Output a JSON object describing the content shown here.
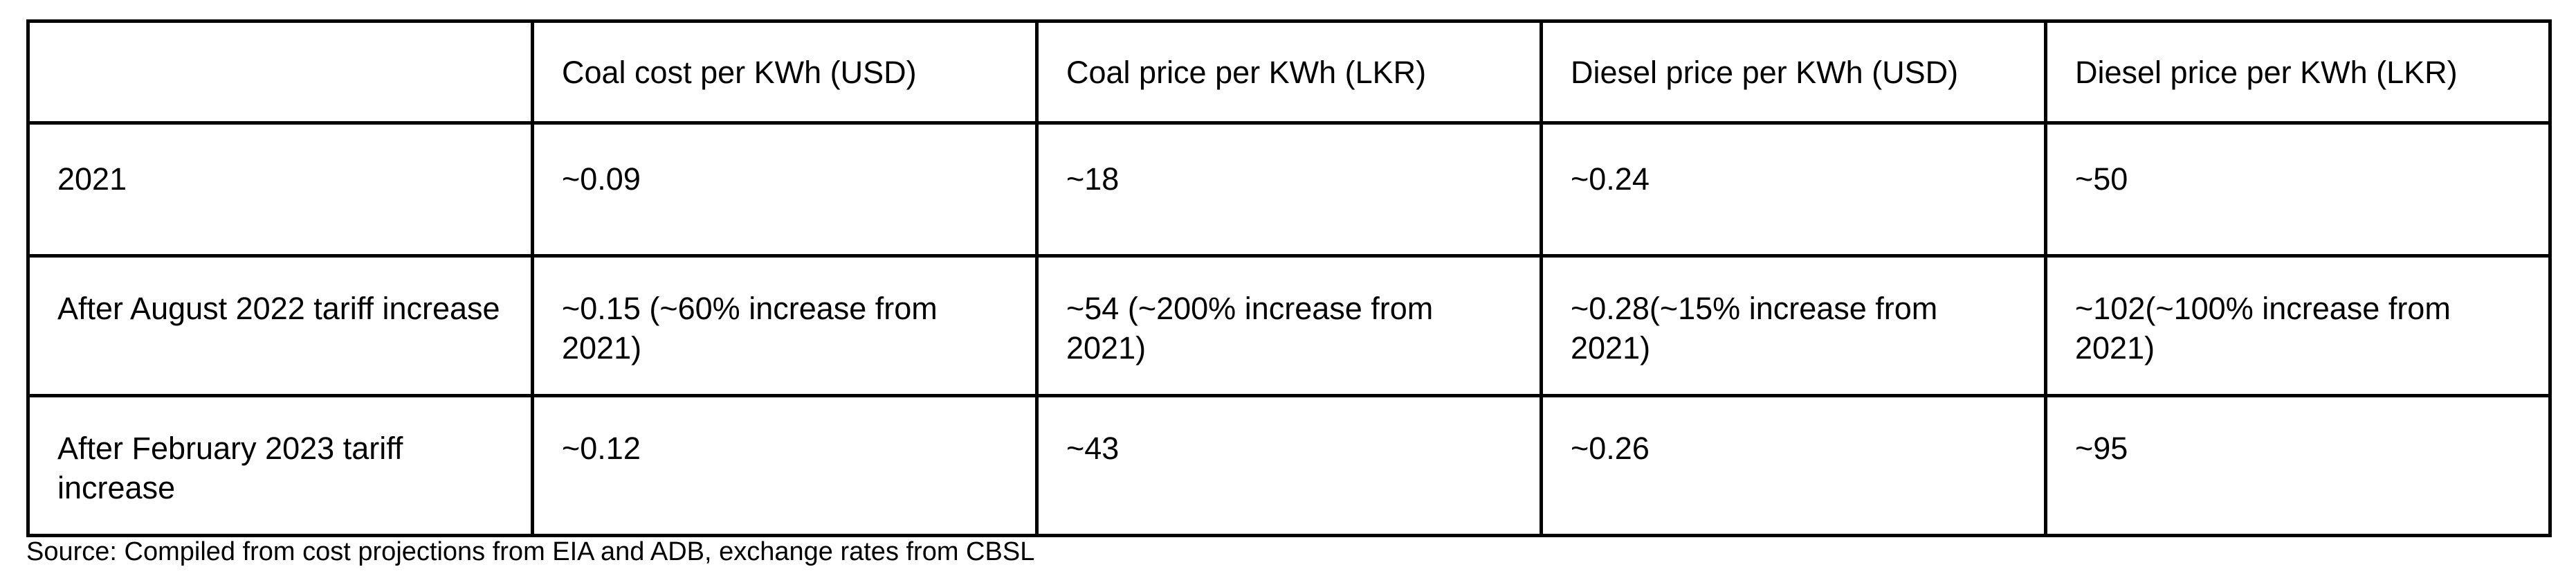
{
  "table": {
    "headers": [
      "",
      "Coal cost per KWh (USD)",
      "Coal price per KWh (LKR)",
      "Diesel price per KWh (USD)",
      "Diesel price per KWh (LKR)"
    ],
    "rows": [
      [
        "2021",
        "~0.09",
        "~18",
        "~0.24",
        "~50"
      ],
      [
        "After August 2022 tariff increase",
        "~0.15 (~60% increase from 2021)",
        "~54 (~200% increase from 2021)",
        "~0.28(~15% increase from 2021)",
        "~102(~100% increase from 2021)"
      ],
      [
        "After February 2023 tariff increase",
        "~0.12",
        "~43",
        "~0.26",
        "~95"
      ]
    ]
  },
  "source": "Source: Compiled from cost projections from EIA and ADB, exchange rates from CBSL"
}
